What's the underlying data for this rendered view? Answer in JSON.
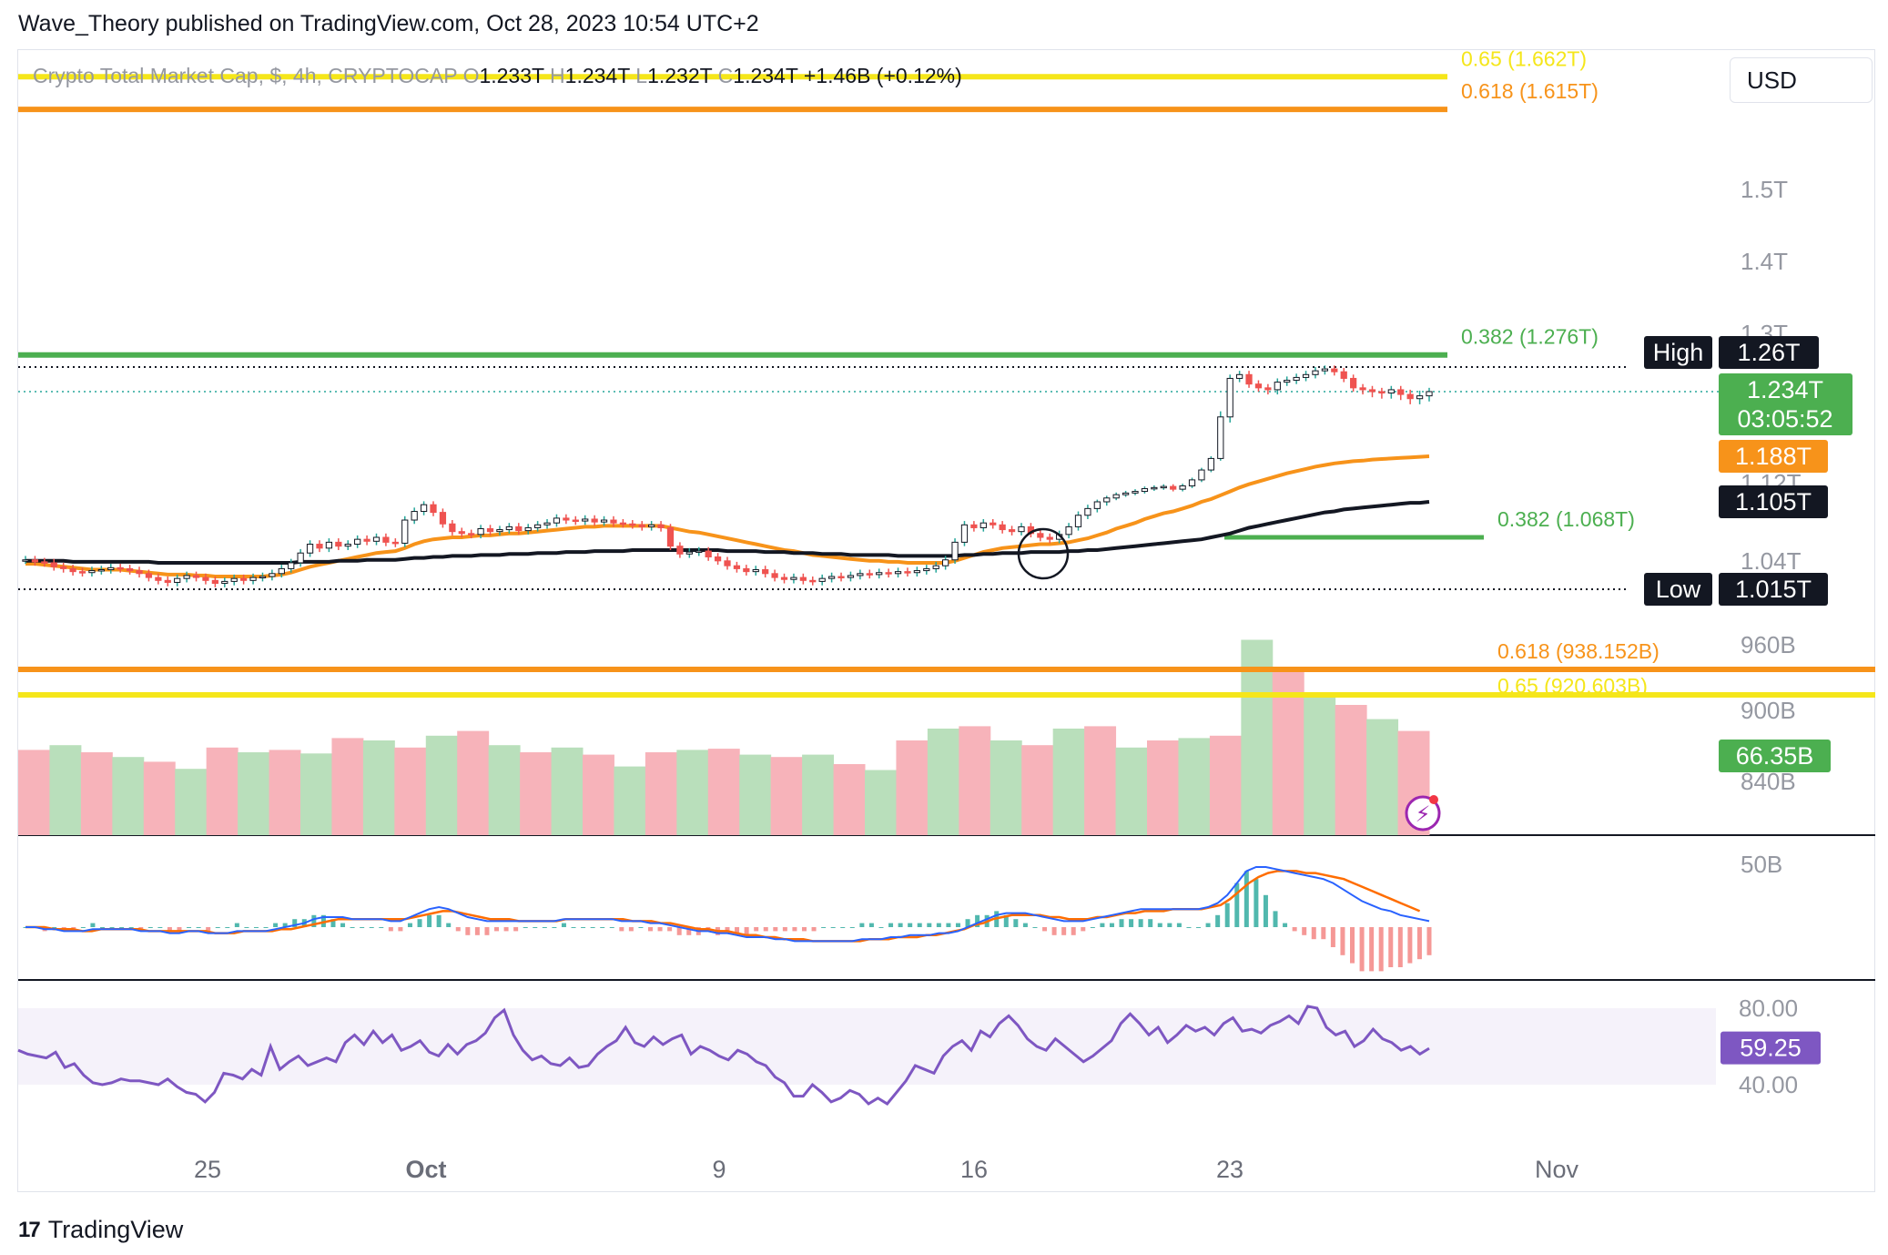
{
  "header": {
    "text": "Wave_Theory published on TradingView.com, Oct 28, 2023 10:54 UTC+2"
  },
  "ohlc": {
    "symbol": "Crypto Total Market Cap, $, 4h, CRYPTOCAP",
    "o_label": "O",
    "o": "1.233T",
    "h_label": "H",
    "h": "1.234T",
    "l_label": "L",
    "l": "1.232T",
    "c_label": "C",
    "c": "1.234T",
    "change": "+1.46B (+0.12%)"
  },
  "currency": "USD",
  "footer": {
    "logo": "17",
    "brand": "TradingView"
  },
  "colors": {
    "green": "#26a69a",
    "green_line": "#4caf50",
    "red": "#ef5350",
    "orange": "#f7931a",
    "yellow": "#f5e61a",
    "black": "#131722",
    "macd": "#2962ff",
    "signal": "#ff6d00",
    "rsi": "#7e57c2",
    "vol_up": "#b9dfbb",
    "vol_down": "#f7b3ba"
  },
  "chart_data": {
    "type": "candlestick",
    "price_axis": {
      "ticks": [
        "1.5T",
        "1.4T",
        "1.3T",
        "1.12T",
        "1.04T",
        "960B",
        "900B",
        "840B"
      ],
      "ylim": [
        0.78,
        1.72
      ],
      "unit": "T"
    },
    "x_ticks": [
      "25",
      "Oct",
      "9",
      "16",
      "23",
      "Nov"
    ],
    "fib_levels": [
      {
        "label": "0.65 (1.662T)",
        "value": 1.662,
        "color": "#f5e61a"
      },
      {
        "label": "0.618 (1.615T)",
        "value": 1.615,
        "color": "#f7931a"
      },
      {
        "label": "0.382 (1.276T)",
        "value": 1.276,
        "color": "#4caf50"
      },
      {
        "label": "0.382 (1.068T)",
        "value": 1.068,
        "color": "#4caf50"
      },
      {
        "label": "0.618 (938.152B)",
        "value": 0.938,
        "color": "#f7931a"
      },
      {
        "label": "0.65 (920.603B)",
        "value": 0.921,
        "color": "#f5e61a"
      }
    ],
    "markers": {
      "high": {
        "label": "High",
        "value_text": "1.26T",
        "value": 1.26
      },
      "low": {
        "label": "Low",
        "value_text": "1.015T",
        "value": 1.015
      },
      "last": {
        "value_text": "1.234T",
        "countdown": "03:05:52",
        "value": 1.234
      },
      "ema50": {
        "value_text": "1.188T",
        "value": 1.188
      },
      "ema200": {
        "value_text": "1.105T",
        "value": 1.105
      },
      "volume": {
        "value_text": "66.35B"
      }
    },
    "closes": [
      1.045,
      1.043,
      1.042,
      1.038,
      1.036,
      1.033,
      1.032,
      1.034,
      1.035,
      1.037,
      1.036,
      1.034,
      1.031,
      1.027,
      1.024,
      1.022,
      1.026,
      1.029,
      1.027,
      1.024,
      1.021,
      1.023,
      1.026,
      1.024,
      1.027,
      1.028,
      1.031,
      1.036,
      1.042,
      1.052,
      1.061,
      1.057,
      1.063,
      1.059,
      1.061,
      1.066,
      1.064,
      1.068,
      1.063,
      1.062,
      1.086,
      1.095,
      1.102,
      1.094,
      1.082,
      1.074,
      1.072,
      1.071,
      1.077,
      1.074,
      1.076,
      1.079,
      1.075,
      1.078,
      1.081,
      1.083,
      1.088,
      1.086,
      1.085,
      1.087,
      1.084,
      1.086,
      1.083,
      1.082,
      1.081,
      1.079,
      1.081,
      1.078,
      1.059,
      1.051,
      1.053,
      1.054,
      1.048,
      1.044,
      1.039,
      1.036,
      1.033,
      1.035,
      1.031,
      1.027,
      1.025,
      1.027,
      1.024,
      1.023,
      1.026,
      1.028,
      1.027,
      1.029,
      1.031,
      1.03,
      1.032,
      1.031,
      1.033,
      1.032,
      1.034,
      1.036,
      1.039,
      1.045,
      1.063,
      1.081,
      1.078,
      1.083,
      1.081,
      1.076,
      1.074,
      1.079,
      1.072,
      1.068,
      1.066,
      1.071,
      1.079,
      1.091,
      1.098,
      1.105,
      1.112,
      1.118,
      1.121,
      1.124,
      1.129,
      1.131,
      1.133,
      1.128,
      1.134,
      1.145,
      1.163,
      1.184,
      1.216,
      1.248,
      1.252,
      1.242,
      1.238,
      1.236,
      1.244,
      1.246,
      1.249,
      1.252,
      1.256,
      1.258,
      1.255,
      1.248,
      1.238,
      1.236,
      1.234,
      1.233,
      1.236,
      1.232,
      1.229,
      1.231,
      1.234
    ],
    "ema50": [
      1.041,
      1.041,
      1.04,
      1.039,
      1.038,
      1.037,
      1.036,
      1.035,
      1.035,
      1.035,
      1.035,
      1.034,
      1.033,
      1.032,
      1.031,
      1.03,
      1.03,
      1.03,
      1.029,
      1.029,
      1.028,
      1.028,
      1.028,
      1.028,
      1.028,
      1.028,
      1.029,
      1.03,
      1.032,
      1.035,
      1.038,
      1.04,
      1.042,
      1.044,
      1.046,
      1.048,
      1.05,
      1.052,
      1.053,
      1.054,
      1.057,
      1.061,
      1.064,
      1.066,
      1.067,
      1.068,
      1.068,
      1.069,
      1.07,
      1.07,
      1.071,
      1.072,
      1.072,
      1.073,
      1.074,
      1.075,
      1.076,
      1.077,
      1.078,
      1.079,
      1.079,
      1.08,
      1.08,
      1.08,
      1.08,
      1.08,
      1.08,
      1.08,
      1.078,
      1.076,
      1.074,
      1.073,
      1.071,
      1.069,
      1.067,
      1.065,
      1.063,
      1.061,
      1.059,
      1.057,
      1.055,
      1.054,
      1.052,
      1.05,
      1.049,
      1.048,
      1.047,
      1.046,
      1.045,
      1.044,
      1.044,
      1.043,
      1.043,
      1.042,
      1.042,
      1.042,
      1.042,
      1.042,
      1.044,
      1.047,
      1.05,
      1.053,
      1.055,
      1.057,
      1.058,
      1.059,
      1.06,
      1.061,
      1.061,
      1.062,
      1.063,
      1.065,
      1.067,
      1.07,
      1.073,
      1.077,
      1.08,
      1.083,
      1.087,
      1.09,
      1.093,
      1.095,
      1.098,
      1.101,
      1.105,
      1.11,
      1.117,
      1.124,
      1.131,
      1.137,
      1.142,
      1.147,
      1.152,
      1.157,
      1.161,
      1.165,
      1.169,
      1.172,
      1.175,
      1.177,
      1.179,
      1.18,
      1.182,
      1.183,
      1.184,
      1.185,
      1.186,
      1.187,
      1.188
    ],
    "ema200": [
      1.044,
      1.044,
      1.044,
      1.044,
      1.044,
      1.043,
      1.043,
      1.043,
      1.043,
      1.043,
      1.043,
      1.043,
      1.043,
      1.043,
      1.042,
      1.042,
      1.042,
      1.042,
      1.042,
      1.042,
      1.042,
      1.042,
      1.042,
      1.042,
      1.042,
      1.042,
      1.042,
      1.042,
      1.042,
      1.043,
      1.043,
      1.043,
      1.043,
      1.044,
      1.044,
      1.044,
      1.045,
      1.045,
      1.045,
      1.045,
      1.046,
      1.047,
      1.047,
      1.048,
      1.048,
      1.049,
      1.049,
      1.049,
      1.05,
      1.05,
      1.05,
      1.051,
      1.051,
      1.051,
      1.052,
      1.052,
      1.052,
      1.053,
      1.053,
      1.053,
      1.054,
      1.054,
      1.054,
      1.054,
      1.055,
      1.055,
      1.055,
      1.055,
      1.055,
      1.055,
      1.055,
      1.055,
      1.055,
      1.055,
      1.054,
      1.054,
      1.054,
      1.054,
      1.053,
      1.053,
      1.053,
      1.052,
      1.052,
      1.052,
      1.051,
      1.051,
      1.051,
      1.05,
      1.05,
      1.05,
      1.05,
      1.05,
      1.049,
      1.049,
      1.049,
      1.049,
      1.049,
      1.049,
      1.049,
      1.05,
      1.05,
      1.051,
      1.051,
      1.052,
      1.052,
      1.052,
      1.053,
      1.053,
      1.053,
      1.053,
      1.054,
      1.054,
      1.055,
      1.055,
      1.056,
      1.057,
      1.058,
      1.059,
      1.06,
      1.061,
      1.062,
      1.063,
      1.064,
      1.065,
      1.066,
      1.068,
      1.07,
      1.072,
      1.075,
      1.078,
      1.08,
      1.082,
      1.084,
      1.086,
      1.088,
      1.09,
      1.092,
      1.094,
      1.095,
      1.097,
      1.098,
      1.099,
      1.1,
      1.101,
      1.102,
      1.103,
      1.104,
      1.104,
      1.105
    ],
    "volume_steps": [
      {
        "v": 72,
        "up": false
      },
      {
        "v": 76,
        "up": true
      },
      {
        "v": 70,
        "up": false
      },
      {
        "v": 66,
        "up": true
      },
      {
        "v": 62,
        "up": false
      },
      {
        "v": 56,
        "up": true
      },
      {
        "v": 74,
        "up": false
      },
      {
        "v": 70,
        "up": true
      },
      {
        "v": 72,
        "up": false
      },
      {
        "v": 69,
        "up": true
      },
      {
        "v": 82,
        "up": false
      },
      {
        "v": 80,
        "up": true
      },
      {
        "v": 74,
        "up": false
      },
      {
        "v": 84,
        "up": true
      },
      {
        "v": 88,
        "up": false
      },
      {
        "v": 76,
        "up": true
      },
      {
        "v": 70,
        "up": false
      },
      {
        "v": 74,
        "up": true
      },
      {
        "v": 68,
        "up": false
      },
      {
        "v": 58,
        "up": true
      },
      {
        "v": 70,
        "up": false
      },
      {
        "v": 72,
        "up": true
      },
      {
        "v": 73,
        "up": false
      },
      {
        "v": 68,
        "up": true
      },
      {
        "v": 66,
        "up": false
      },
      {
        "v": 68,
        "up": true
      },
      {
        "v": 60,
        "up": false
      },
      {
        "v": 55,
        "up": true
      },
      {
        "v": 80,
        "up": false
      },
      {
        "v": 90,
        "up": true
      },
      {
        "v": 92,
        "up": false
      },
      {
        "v": 80,
        "up": true
      },
      {
        "v": 76,
        "up": false
      },
      {
        "v": 90,
        "up": true
      },
      {
        "v": 92,
        "up": false
      },
      {
        "v": 74,
        "up": true
      },
      {
        "v": 80,
        "up": false
      },
      {
        "v": 82,
        "up": true
      },
      {
        "v": 84,
        "up": false
      },
      {
        "v": 165,
        "up": true
      },
      {
        "v": 140,
        "up": false
      },
      {
        "v": 120,
        "up": true
      },
      {
        "v": 110,
        "up": false
      },
      {
        "v": 98,
        "up": true
      },
      {
        "v": 88,
        "up": false
      }
    ],
    "macd": [
      0,
      0,
      -1,
      -1,
      -2,
      -2,
      -2,
      -1,
      -1,
      -1,
      -1,
      -1,
      -2,
      -2,
      -2,
      -3,
      -3,
      -2,
      -2,
      -3,
      -3,
      -3,
      -2,
      -2,
      -2,
      -2,
      -1,
      0,
      1,
      2,
      4,
      5,
      5,
      5,
      4,
      4,
      4,
      4,
      3,
      3,
      5,
      7,
      9,
      10,
      9,
      7,
      5,
      4,
      3,
      3,
      3,
      3,
      3,
      3,
      3,
      3,
      4,
      4,
      4,
      4,
      4,
      4,
      3,
      3,
      3,
      2,
      2,
      1,
      0,
      -1,
      -2,
      -2,
      -3,
      -3,
      -4,
      -5,
      -5,
      -5,
      -6,
      -6,
      -7,
      -7,
      -7,
      -7,
      -7,
      -7,
      -7,
      -6,
      -6,
      -6,
      -5,
      -5,
      -4,
      -4,
      -4,
      -3,
      -3,
      -2,
      0,
      2,
      4,
      6,
      7,
      7,
      7,
      6,
      5,
      4,
      3,
      3,
      3,
      4,
      5,
      6,
      7,
      8,
      9,
      9,
      9,
      9,
      9,
      9,
      9,
      10,
      12,
      16,
      22,
      28,
      30,
      30,
      29,
      28,
      27,
      26,
      25,
      24,
      22,
      19,
      16,
      13,
      11,
      9,
      8,
      6,
      5,
      4,
      3
    ],
    "macd_signal": [
      0,
      0,
      0,
      -1,
      -1,
      -1,
      -2,
      -2,
      -1,
      -1,
      -1,
      -1,
      -1,
      -2,
      -2,
      -2,
      -2,
      -2,
      -2,
      -2,
      -3,
      -3,
      -3,
      -2,
      -2,
      -2,
      -2,
      -1,
      -1,
      0,
      1,
      2,
      3,
      4,
      4,
      4,
      4,
      4,
      4,
      4,
      4,
      5,
      6,
      7,
      8,
      8,
      7,
      6,
      5,
      4,
      4,
      4,
      3,
      3,
      3,
      3,
      3,
      4,
      4,
      4,
      4,
      4,
      4,
      4,
      3,
      3,
      3,
      2,
      2,
      1,
      0,
      -1,
      -1,
      -2,
      -2,
      -3,
      -4,
      -4,
      -5,
      -5,
      -6,
      -6,
      -6,
      -7,
      -7,
      -7,
      -7,
      -7,
      -7,
      -6,
      -6,
      -6,
      -5,
      -5,
      -5,
      -4,
      -4,
      -3,
      -2,
      -1,
      1,
      2,
      4,
      5,
      6,
      6,
      6,
      6,
      5,
      5,
      4,
      4,
      4,
      5,
      5,
      6,
      7,
      7,
      8,
      8,
      8,
      9,
      9,
      9,
      9,
      10,
      11,
      14,
      18,
      22,
      25,
      27,
      28,
      28,
      28,
      27,
      27,
      26,
      25,
      24,
      22,
      20,
      18,
      16,
      14,
      12,
      10,
      8
    ],
    "rsi": {
      "ticks": [
        "80.00",
        "40.00"
      ],
      "value_text": "59.25",
      "values": [
        58,
        56,
        55,
        54,
        57,
        49,
        51,
        45,
        41,
        40,
        41,
        43,
        42,
        42,
        41,
        40,
        43,
        39,
        36,
        35,
        31,
        36,
        46,
        45,
        43,
        48,
        45,
        60,
        48,
        52,
        55,
        50,
        52,
        54,
        52,
        62,
        66,
        61,
        68,
        62,
        66,
        58,
        60,
        63,
        57,
        55,
        61,
        56,
        61,
        63,
        67,
        75,
        79,
        66,
        58,
        53,
        55,
        51,
        50,
        54,
        49,
        50,
        56,
        60,
        63,
        70,
        62,
        60,
        65,
        61,
        64,
        66,
        56,
        60,
        58,
        55,
        53,
        58,
        56,
        52,
        50,
        44,
        41,
        34,
        34,
        40,
        36,
        31,
        33,
        37,
        35,
        30,
        33,
        30,
        36,
        42,
        50,
        48,
        46,
        55,
        60,
        63,
        58,
        68,
        65,
        72,
        76,
        71,
        64,
        60,
        58,
        64,
        60,
        56,
        52,
        55,
        59,
        63,
        72,
        77,
        72,
        66,
        70,
        62,
        66,
        71,
        68,
        70,
        66,
        72,
        75,
        68,
        69,
        67,
        71,
        73,
        76,
        72,
        81,
        80,
        70,
        66,
        68,
        60,
        63,
        69,
        64,
        62,
        58,
        60,
        56,
        59
      ],
      "band": [
        40,
        80
      ]
    }
  }
}
